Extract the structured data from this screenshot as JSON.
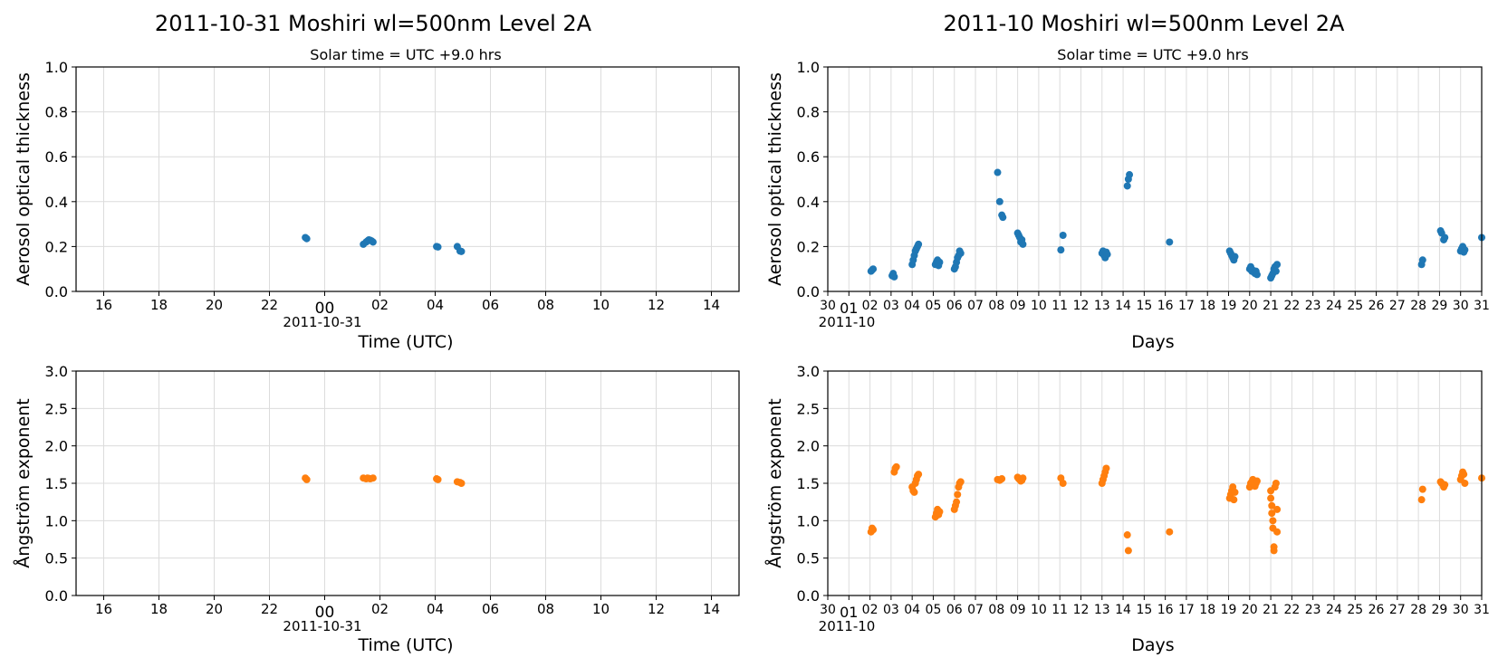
{
  "colors": {
    "aot": "#1f77b4",
    "angstrom": "#ff7f0e",
    "grid": "#dcdcdc"
  },
  "panels": {
    "daily": {
      "title": "2011-10-31  Moshiri  wl=500nm  Level 2A",
      "subtitle": "Solar time = UTC +9.0 hrs",
      "xlabel": "Time (UTC)",
      "date_label": "2011-10-31",
      "x_ticks": [
        "16",
        "18",
        "20",
        "22",
        "00",
        "02",
        "04",
        "06",
        "08",
        "10",
        "12",
        "14"
      ]
    },
    "monthly": {
      "title": "2011-10  Moshiri  wl=500nm  Level 2A",
      "subtitle": "Solar time = UTC +9.0 hrs",
      "xlabel": "Days",
      "date_label": "2011-10",
      "x_ticks": [
        "30",
        "01",
        "02",
        "03",
        "04",
        "05",
        "06",
        "07",
        "08",
        "09",
        "10",
        "11",
        "12",
        "13",
        "14",
        "15",
        "16",
        "17",
        "18",
        "19",
        "20",
        "21",
        "22",
        "23",
        "24",
        "25",
        "26",
        "27",
        "28",
        "29",
        "30",
        "31"
      ]
    }
  },
  "chart_data": [
    {
      "type": "scatter",
      "title": "2011-10-31  Moshiri  wl=500nm  Level 2A",
      "subtitle": "Solar time = UTC +9.0 hrs",
      "xlabel": "Time (UTC)",
      "ylabel": "Aerosol optical thickness",
      "x_unit": "hours UTC relative to 2011-10-31 00:00",
      "xlim": [
        -9,
        15
      ],
      "ylim": [
        0,
        1.0
      ],
      "yticks": [
        "0.0",
        "0.2",
        "0.4",
        "0.6",
        "0.8",
        "1.0"
      ],
      "grid": true,
      "series": [
        {
          "x": [
            -0.7,
            -0.65,
            1.4,
            1.5,
            1.55,
            1.6,
            1.65,
            1.7,
            1.75,
            4.05,
            4.1,
            4.8,
            4.9,
            4.95
          ],
          "y": [
            0.24,
            0.235,
            0.21,
            0.22,
            0.225,
            0.23,
            0.228,
            0.225,
            0.22,
            0.2,
            0.198,
            0.2,
            0.18,
            0.178
          ]
        }
      ]
    },
    {
      "type": "scatter",
      "title": "2011-10  Moshiri  wl=500nm  Level 2A",
      "subtitle": "Solar time = UTC +9.0 hrs",
      "xlabel": "Days",
      "ylabel": "Aerosol optical thickness",
      "x_unit": "day of October 2011",
      "xlim": [
        0,
        31
      ],
      "ylim": [
        0,
        1.0
      ],
      "yticks": [
        "0.0",
        "0.2",
        "0.4",
        "0.6",
        "0.8",
        "1.0"
      ],
      "grid": true,
      "series": [
        {
          "x": [
            2.05,
            2.1,
            2.15,
            3.05,
            3.1,
            3.15,
            4.0,
            4.05,
            4.1,
            4.15,
            4.2,
            4.25,
            4.3,
            5.1,
            5.15,
            5.2,
            5.25,
            5.3,
            6.0,
            6.05,
            6.1,
            6.15,
            6.2,
            6.25,
            6.3,
            8.05,
            8.15,
            8.25,
            8.3,
            9.0,
            9.05,
            9.1,
            9.15,
            9.2,
            9.25,
            11.05,
            11.15,
            13.0,
            13.05,
            13.1,
            13.15,
            13.2,
            13.25,
            14.2,
            14.25,
            14.3,
            16.2,
            19.05,
            19.1,
            19.15,
            19.2,
            19.25,
            19.3,
            20.0,
            20.05,
            20.1,
            20.15,
            20.2,
            20.25,
            20.3,
            20.35,
            21.0,
            21.05,
            21.1,
            21.15,
            21.2,
            21.25,
            21.3,
            28.15,
            28.2,
            29.05,
            29.1,
            29.2,
            29.25,
            30.0,
            30.05,
            30.1,
            30.15,
            30.2,
            31.0
          ],
          "y": [
            0.09,
            0.095,
            0.1,
            0.07,
            0.08,
            0.065,
            0.12,
            0.14,
            0.16,
            0.18,
            0.19,
            0.2,
            0.21,
            0.12,
            0.13,
            0.14,
            0.115,
            0.13,
            0.1,
            0.11,
            0.13,
            0.15,
            0.16,
            0.18,
            0.17,
            0.53,
            0.4,
            0.34,
            0.33,
            0.26,
            0.25,
            0.24,
            0.22,
            0.23,
            0.21,
            0.185,
            0.25,
            0.17,
            0.18,
            0.16,
            0.15,
            0.175,
            0.165,
            0.47,
            0.5,
            0.52,
            0.22,
            0.18,
            0.17,
            0.16,
            0.15,
            0.14,
            0.155,
            0.1,
            0.11,
            0.09,
            0.095,
            0.085,
            0.08,
            0.09,
            0.075,
            0.06,
            0.07,
            0.08,
            0.1,
            0.11,
            0.09,
            0.12,
            0.12,
            0.14,
            0.27,
            0.26,
            0.23,
            0.24,
            0.18,
            0.19,
            0.2,
            0.175,
            0.185,
            0.24
          ]
        }
      ]
    },
    {
      "type": "scatter",
      "xlabel": "Time (UTC)",
      "ylabel": "Ångström exponent",
      "x_unit": "hours UTC relative to 2011-10-31 00:00",
      "xlim": [
        -9,
        15
      ],
      "ylim": [
        0,
        3.0
      ],
      "yticks": [
        "0.0",
        "0.5",
        "1.0",
        "1.5",
        "2.0",
        "2.5",
        "3.0"
      ],
      "grid": true,
      "series": [
        {
          "x": [
            -0.7,
            -0.65,
            1.4,
            1.5,
            1.55,
            1.6,
            1.65,
            1.75,
            4.05,
            4.1,
            4.8,
            4.9,
            4.95
          ],
          "y": [
            1.57,
            1.55,
            1.57,
            1.56,
            1.57,
            1.565,
            1.56,
            1.57,
            1.56,
            1.55,
            1.52,
            1.51,
            1.5
          ]
        }
      ]
    },
    {
      "type": "scatter",
      "xlabel": "Days",
      "ylabel": "Ångström exponent",
      "x_unit": "day of October 2011",
      "xlim": [
        0,
        31
      ],
      "ylim": [
        0,
        3.0
      ],
      "yticks": [
        "0.0",
        "0.5",
        "1.0",
        "1.5",
        "2.0",
        "2.5",
        "3.0"
      ],
      "grid": true,
      "series": [
        {
          "x": [
            2.05,
            2.1,
            2.15,
            3.15,
            3.2,
            3.25,
            4.0,
            4.05,
            4.1,
            4.15,
            4.2,
            4.25,
            4.3,
            5.1,
            5.15,
            5.2,
            5.25,
            5.3,
            6.0,
            6.05,
            6.1,
            6.15,
            6.2,
            6.25,
            6.3,
            8.05,
            8.15,
            8.25,
            9.0,
            9.05,
            9.1,
            9.15,
            9.2,
            9.25,
            11.05,
            11.15,
            13.0,
            13.05,
            13.1,
            13.15,
            13.2,
            14.2,
            14.25,
            16.2,
            19.05,
            19.1,
            19.15,
            19.2,
            19.25,
            19.3,
            20.0,
            20.05,
            20.1,
            20.15,
            20.2,
            20.25,
            20.3,
            20.35,
            21.0,
            21.0,
            21.05,
            21.05,
            21.1,
            21.1,
            21.15,
            21.15,
            21.2,
            21.25,
            21.3,
            21.3,
            28.15,
            28.2,
            29.05,
            29.1,
            29.2,
            29.25,
            30.0,
            30.05,
            30.1,
            30.15,
            30.2,
            31.0
          ],
          "y": [
            0.85,
            0.9,
            0.88,
            1.65,
            1.7,
            1.72,
            1.45,
            1.4,
            1.38,
            1.5,
            1.55,
            1.6,
            1.62,
            1.05,
            1.1,
            1.15,
            1.08,
            1.12,
            1.15,
            1.2,
            1.25,
            1.35,
            1.45,
            1.5,
            1.52,
            1.55,
            1.54,
            1.56,
            1.58,
            1.56,
            1.55,
            1.53,
            1.54,
            1.57,
            1.57,
            1.5,
            1.5,
            1.55,
            1.6,
            1.65,
            1.7,
            0.81,
            0.6,
            0.85,
            1.3,
            1.35,
            1.4,
            1.45,
            1.28,
            1.38,
            1.45,
            1.5,
            1.52,
            1.55,
            1.48,
            1.46,
            1.5,
            1.53,
            1.4,
            1.3,
            1.2,
            1.1,
            1.0,
            0.9,
            0.65,
            0.6,
            1.45,
            1.5,
            0.85,
            1.15,
            1.28,
            1.42,
            1.52,
            1.5,
            1.45,
            1.48,
            1.55,
            1.6,
            1.65,
            1.62,
            1.5,
            1.57
          ]
        }
      ]
    }
  ]
}
